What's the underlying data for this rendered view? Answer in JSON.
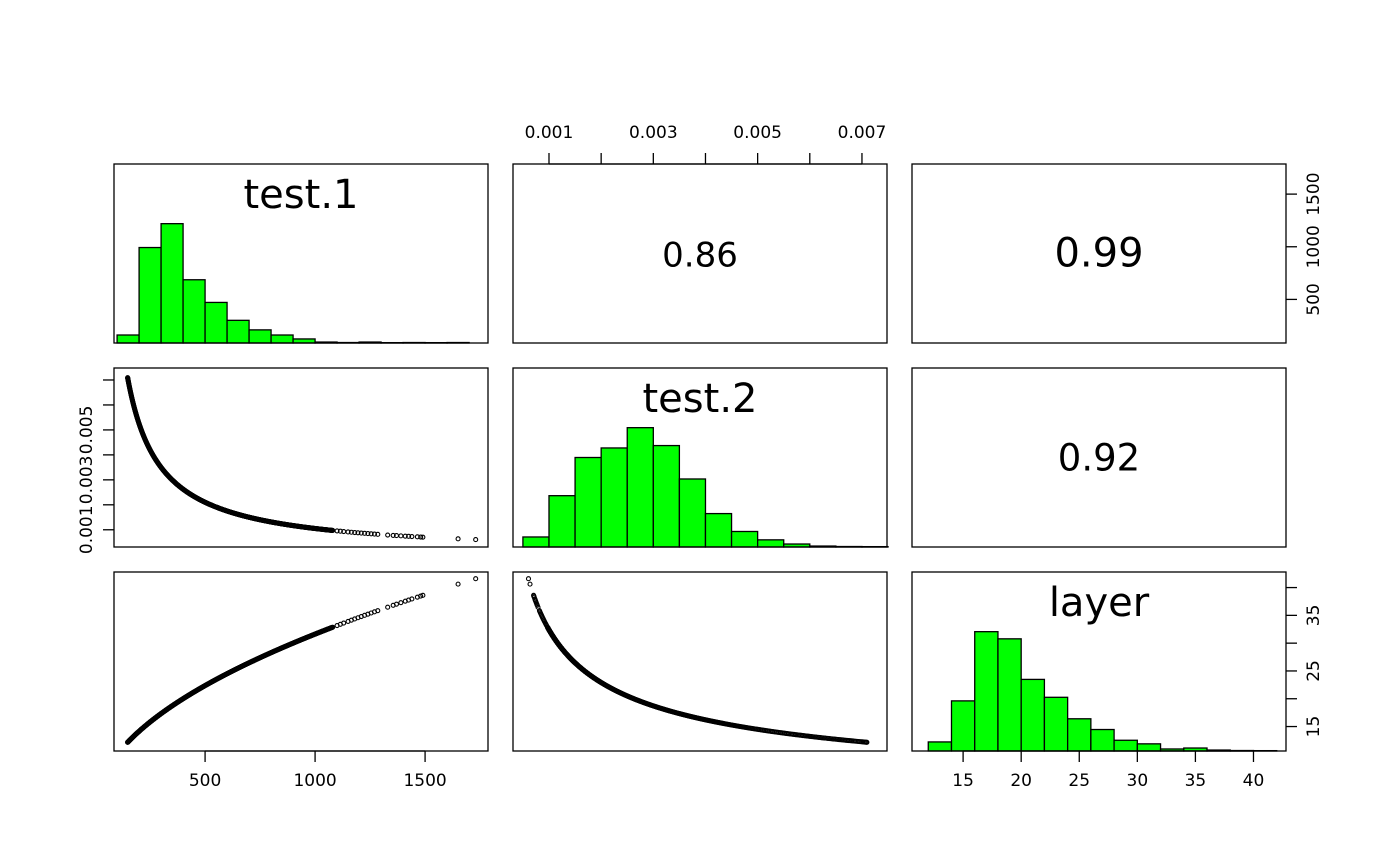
{
  "chart_data": {
    "type": "scatter-matrix",
    "variables": [
      "test.1",
      "test.2",
      "layer"
    ],
    "ranges": {
      "test.1": [
        86,
        1786
      ],
      "test.2": [
        0.00031,
        0.00748
      ],
      "layer": [
        10.6,
        42.8
      ]
    },
    "histograms": {
      "test.1": {
        "breaks_start": 100,
        "bin_width": 100,
        "relative_heights": [
          0.067,
          0.8,
          1.0,
          0.53,
          0.34,
          0.19,
          0.11,
          0.067,
          0.034,
          0.008,
          0.004,
          0.008,
          0.003,
          0.004,
          0.003,
          0.004
        ]
      },
      "test.2": {
        "breaks_start": 0.0005,
        "bin_width": 0.0005,
        "relative_heights": [
          0.084,
          0.43,
          0.75,
          0.83,
          1.0,
          0.85,
          0.57,
          0.28,
          0.13,
          0.06,
          0.025,
          0.008,
          0.004,
          0.003
        ]
      },
      "layer": {
        "breaks_start": 12,
        "bin_width": 2,
        "relative_heights": [
          0.076,
          0.42,
          1.0,
          0.94,
          0.6,
          0.45,
          0.27,
          0.18,
          0.09,
          0.06,
          0.017,
          0.025,
          0.008,
          0.004,
          0.003
        ]
      }
    },
    "correlations": [
      {
        "pair": [
          "test.1",
          "test.2"
        ],
        "label": "0.86",
        "value": 0.86
      },
      {
        "pair": [
          "test.1",
          "layer"
        ],
        "label": "0.99",
        "value": 0.99
      },
      {
        "pair": [
          "test.2",
          "layer"
        ],
        "label": "0.92",
        "value": 0.92
      }
    ],
    "scatter_samples": {
      "test1_dense_range": [
        148,
        1080
      ],
      "test1_sparse": [
        1100,
        1115,
        1130,
        1150,
        1165,
        1180,
        1195,
        1210,
        1225,
        1240,
        1255,
        1270,
        1285,
        1330,
        1355,
        1370,
        1390,
        1410,
        1425,
        1440,
        1465,
        1480,
        1490,
        1650,
        1730
      ],
      "test2_model": {
        "coef": 1.05,
        "exponent": -1
      },
      "layer_model": {
        "coef": 1.0,
        "exponent": 0.5
      }
    },
    "axes": {
      "top_test2": {
        "ticks": [
          0.001,
          0.002,
          0.003,
          0.004,
          0.005,
          0.006,
          0.007
        ],
        "labels": [
          "0.001",
          "0.003",
          "0.005",
          "0.007"
        ],
        "label_values": [
          0.001,
          0.003,
          0.005,
          0.007
        ]
      },
      "right_test1": {
        "ticks": [
          500,
          1000,
          1500
        ],
        "labels": [
          "500",
          "1000",
          "1500"
        ],
        "label_values": [
          500,
          1000,
          1500
        ]
      },
      "left_test2": {
        "ticks": [
          0.001,
          0.002,
          0.003,
          0.004,
          0.005,
          0.006,
          0.007
        ],
        "labels": [
          "0.001",
          "0.003",
          "0.005"
        ],
        "label_values": [
          0.001,
          0.003,
          0.005
        ]
      },
      "right_layer": {
        "ticks": [
          15,
          20,
          25,
          30,
          35,
          40
        ],
        "labels": [
          "15",
          "25",
          "35"
        ],
        "label_values": [
          15,
          25,
          35
        ]
      },
      "bottom_test1": {
        "ticks": [
          500,
          1000,
          1500
        ],
        "labels": [
          "500",
          "1000",
          "1500"
        ],
        "label_values": [
          500,
          1000,
          1500
        ]
      },
      "bottom_layer": {
        "ticks": [
          15,
          20,
          25,
          30,
          35,
          40
        ],
        "labels": [
          "15",
          "20",
          "25",
          "30",
          "35",
          "40"
        ],
        "label_values": [
          15,
          20,
          25,
          30,
          35,
          40
        ]
      }
    },
    "colors": {
      "bar_fill": "#00ff00",
      "points": "#000000"
    }
  }
}
